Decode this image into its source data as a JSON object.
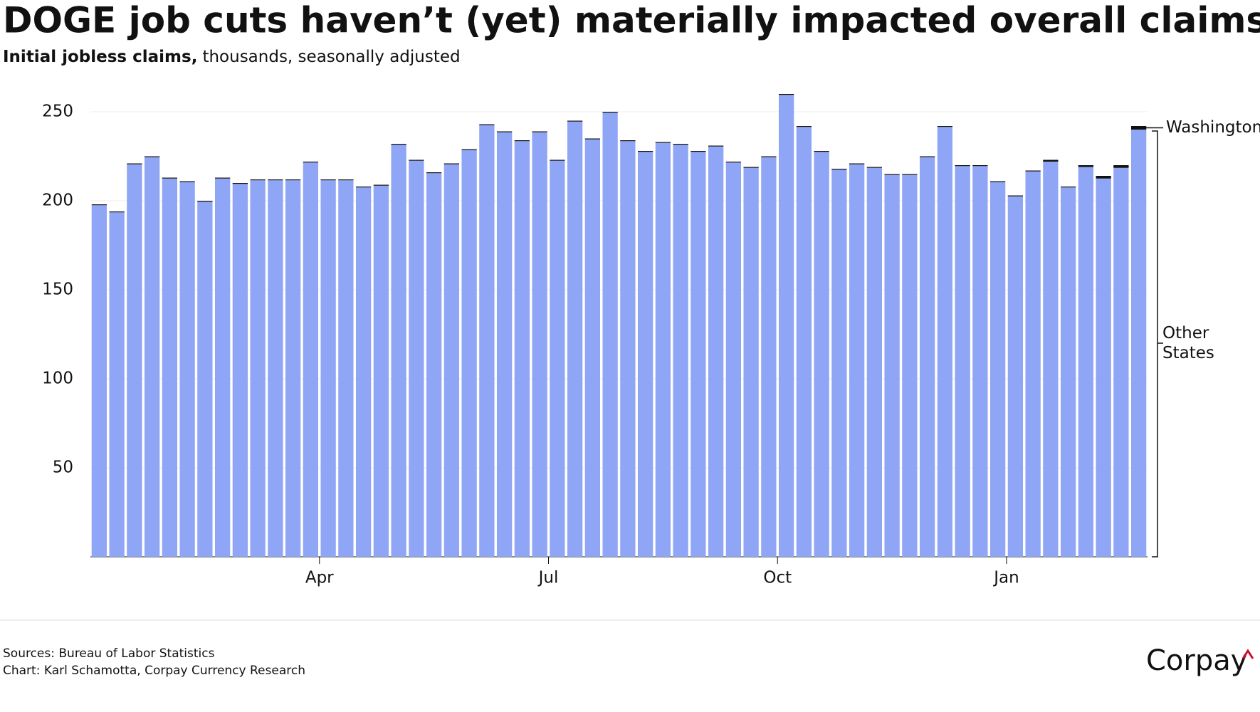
{
  "chart_data": {
    "type": "bar",
    "stacked": true,
    "title": "DOGE job cuts haven’t (yet) materially impacted overall claims.",
    "subtitle_bold": "Initial jobless claims,",
    "subtitle": "thousands, seasonally adjusted",
    "categories": [
      null,
      null,
      null,
      null,
      null,
      null,
      null,
      null,
      null,
      null,
      null,
      null,
      null,
      "Apr",
      null,
      null,
      null,
      null,
      null,
      null,
      null,
      null,
      null,
      null,
      null,
      null,
      "Jul",
      null,
      null,
      null,
      null,
      null,
      null,
      null,
      null,
      null,
      null,
      null,
      null,
      "Oct",
      null,
      null,
      null,
      null,
      null,
      null,
      null,
      null,
      null,
      null,
      null,
      null,
      "Jan",
      null,
      null,
      null,
      null,
      null,
      null,
      null
    ],
    "series": [
      {
        "name": "Other States",
        "color": "#8fa5f5",
        "values": [
          197.5,
          193.5,
          220.5,
          224.5,
          212.5,
          210.5,
          199.5,
          212.5,
          209.5,
          211.5,
          211.5,
          211.5,
          221.5,
          211.5,
          211.5,
          207.5,
          208.5,
          231.5,
          222.5,
          215.5,
          220.5,
          228.5,
          242.5,
          238.5,
          233.5,
          238.5,
          222.5,
          244.5,
          234.5,
          249.5,
          233.5,
          227.5,
          232.5,
          231.5,
          227.5,
          230.5,
          221.5,
          218.5,
          224.5,
          259.5,
          241.5,
          227.5,
          217.5,
          220.5,
          218.5,
          214.5,
          214.5,
          224.5,
          241.5,
          219.5,
          219.5,
          210.5,
          202.5,
          216.5,
          222,
          207.5,
          219,
          212.5,
          218.5,
          240
        ]
      },
      {
        "name": "Washington",
        "color": "#111111",
        "values": [
          0.5,
          0.5,
          0.5,
          0.5,
          0.5,
          0.5,
          0.5,
          0.5,
          0.5,
          0.5,
          0.5,
          0.5,
          0.5,
          0.5,
          0.5,
          0.5,
          0.5,
          0.5,
          0.5,
          0.5,
          0.5,
          0.5,
          0.5,
          0.5,
          0.5,
          0.5,
          0.5,
          0.5,
          0.5,
          0.5,
          0.5,
          0.5,
          0.5,
          0.5,
          0.5,
          0.5,
          0.5,
          0.5,
          0.5,
          0.5,
          0.5,
          0.5,
          0.5,
          0.5,
          0.5,
          0.5,
          0.5,
          0.5,
          0.5,
          0.5,
          0.5,
          0.5,
          0.5,
          0.5,
          1,
          0.5,
          1,
          1.5,
          1.5,
          2
        ]
      }
    ],
    "ylim": [
      0,
      260
    ],
    "yticks": [
      50,
      100,
      150,
      200,
      250
    ],
    "grid": true,
    "sources": "Sources: Bureau of Labor Statistics",
    "credit": "Chart: Karl Schamotta, Corpay Currency Research",
    "logo": "Corpay"
  }
}
